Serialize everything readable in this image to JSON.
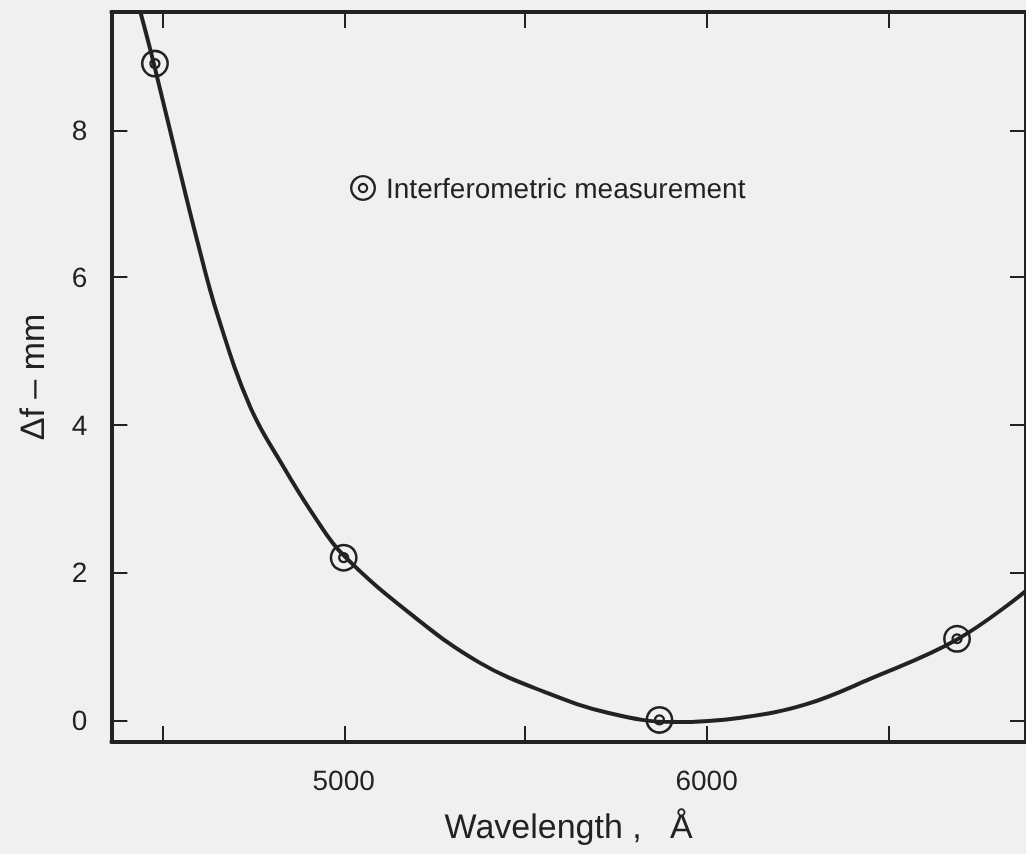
{
  "chart_data": {
    "type": "line",
    "xlabel": "Wavelength ,   Å",
    "ylabel": "Δf – mm",
    "xlim": [
      4360,
      6880
    ],
    "ylim": [
      -0.3,
      9.6
    ],
    "xticks": [
      {
        "value": 4500,
        "label": null
      },
      5000,
      {
        "value": 5500,
        "label": null
      },
      6000,
      {
        "value": 6500,
        "label": null
      }
    ],
    "yticks": [
      0,
      2,
      4,
      6,
      8
    ],
    "series": [
      {
        "color": "#222222",
        "x": [
          4440,
          4477,
          4544,
          4598,
          4652,
          4742,
          4832,
          4922,
          5000,
          5194,
          5373,
          5553,
          5733,
          5913,
          6094,
          6273,
          6452,
          6690,
          6880
        ],
        "values": [
          9.6,
          8.9,
          7.54,
          6.47,
          5.5,
          4.25,
          3.45,
          2.74,
          2.23,
          1.4,
          0.78,
          0.38,
          0.09,
          -0.03,
          0.03,
          0.21,
          0.56,
          1.09,
          1.75
        ],
        "marker": "none"
      },
      {
        "type": "scatter",
        "name": "Interferometric measurement",
        "color": "#222222",
        "x": [
          4480,
          5000,
          5870,
          6690
        ],
        "values": [
          8.9,
          2.2,
          0,
          1.1
        ],
        "marker": "circle"
      }
    ],
    "legend": "top",
    "grid": false
  }
}
